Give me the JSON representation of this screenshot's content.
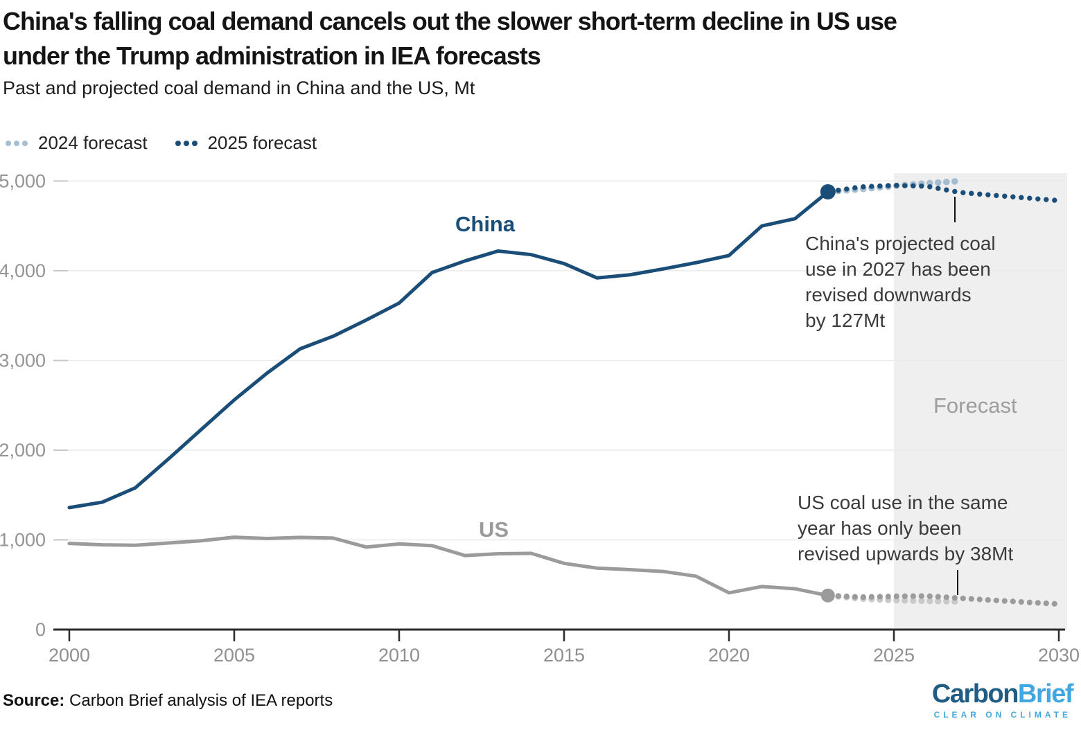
{
  "header": {
    "title": "China's falling coal demand cancels out the slower short-term decline in US use\nunder the Trump administration in IEA forecasts",
    "subtitle": "Past and projected coal demand in China and the US, Mt"
  },
  "legend": {
    "items": [
      {
        "label": "2024 forecast",
        "color": "#a5bdd1"
      },
      {
        "label": "2025 forecast",
        "color": "#1a4e78"
      }
    ]
  },
  "chart_data": {
    "type": "line",
    "title": "Past and projected coal demand in China and the US",
    "unit": "Mt",
    "xlim": [
      2000,
      2030
    ],
    "ylim": [
      0,
      5000
    ],
    "xticks": [
      2000,
      2005,
      2010,
      2015,
      2020,
      2025,
      2030
    ],
    "yticks": [
      0,
      1000,
      2000,
      3000,
      4000,
      5000
    ],
    "ytick_labels": [
      "0",
      "1,000",
      "2,000",
      "3,000",
      "4,000",
      "5,000"
    ],
    "grid": "horizontal",
    "legend_position": "top-left",
    "forecast_band": {
      "start": 2025,
      "end": 2030,
      "label": "Forecast"
    },
    "series": [
      {
        "key": "china_actual",
        "name": "China (historical to 2023)",
        "style": "solid",
        "color": "#1a4e78",
        "x_start": 2000,
        "values": [
          1360,
          1420,
          1580,
          1900,
          2230,
          2560,
          2860,
          3130,
          3270,
          3450,
          3640,
          3980,
          4110,
          4220,
          4180,
          4080,
          3920,
          3955,
          4020,
          4090,
          4170,
          4500,
          4580,
          4880
        ]
      },
      {
        "key": "us_actual",
        "name": "US (historical to 2023)",
        "style": "solid",
        "color": "#9b9b9b",
        "x_start": 2000,
        "values": [
          960,
          945,
          940,
          965,
          990,
          1030,
          1015,
          1028,
          1020,
          920,
          955,
          935,
          825,
          845,
          850,
          738,
          685,
          668,
          648,
          595,
          410,
          480,
          455,
          380
        ]
      },
      {
        "key": "china_2024",
        "name": "China 2024 forecast",
        "style": "dotted",
        "color": "#a5bdd1",
        "x_start": 2023,
        "values": [
          4880,
          4910,
          4945,
          4975,
          5000
        ]
      },
      {
        "key": "us_2024",
        "name": "US 2024 forecast",
        "style": "dotted",
        "color": "#c9c9c9",
        "x_start": 2023,
        "values": [
          380,
          345,
          327,
          318,
          312
        ]
      },
      {
        "key": "china_2025",
        "name": "China 2025 forecast",
        "style": "dotted",
        "color": "#1a4e78",
        "x_start": 2023,
        "values": [
          4880,
          4935,
          4952,
          4942,
          4873,
          4842,
          4812,
          4782
        ]
      },
      {
        "key": "us_2025",
        "name": "US 2025 forecast",
        "style": "dotted",
        "color": "#9b9b9b",
        "x_start": 2023,
        "values": [
          380,
          362,
          370,
          374,
          350,
          327,
          305,
          285
        ]
      }
    ],
    "end_markers": [
      {
        "series": "china_actual",
        "year": 2023,
        "value": 4880
      },
      {
        "series": "us_actual",
        "year": 2023,
        "value": 380
      }
    ]
  },
  "labels": {
    "china_series": "China",
    "us_series": "US",
    "forecast_region": "Forecast"
  },
  "annotations": {
    "china": "China's projected coal\nuse in 2027 has been\nrevised downwards\nby 127Mt",
    "us": "US coal use in the same\nyear has only been\nrevised upwards by 38Mt"
  },
  "footer": {
    "source_label": "Source:",
    "source_text": " Carbon Brief analysis of IEA reports"
  },
  "logo": {
    "part1": "Carbon",
    "part2": "Brief",
    "tagline": "CLEAR ON CLIMATE"
  },
  "colors": {
    "china": "#1a4e78",
    "china_light": "#a5bdd1",
    "us": "#9b9b9b",
    "us_light": "#c9c9c9",
    "band": "#efeff0",
    "grid": "#eaeaea",
    "grid_stub": "#c7c7c7",
    "axis": "#2b2b2b",
    "axis_label": "#949494",
    "connector": "#101010"
  }
}
